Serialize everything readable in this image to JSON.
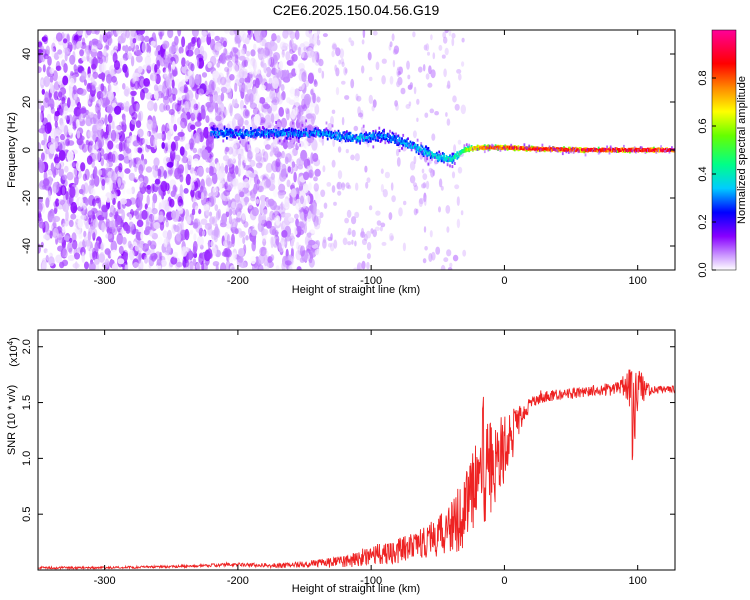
{
  "figure": {
    "title": "C2E6.2025.150.04.56.G19"
  },
  "chart_data": [
    {
      "type": "heatmap",
      "title": "",
      "xlabel": "Height of straight line (km)",
      "ylabel": "Frequency (Hz)",
      "xlim": [
        -350,
        128
      ],
      "ylim": [
        -50,
        50
      ],
      "xticks": [
        -300,
        -200,
        -100,
        0,
        100
      ],
      "yticks": [
        -40,
        -20,
        0,
        20,
        40
      ],
      "grid": false,
      "colorbar": {
        "label": "Normalized spectral amplitude",
        "range": [
          0,
          1
        ],
        "ticks": [
          0.0,
          0.2,
          0.4,
          0.6,
          0.8
        ],
        "tick_labels": [
          "0.0",
          "0.2",
          "0.4",
          "0.6",
          "0.8"
        ],
        "colormap": [
          "#ffffff",
          "#9933ff",
          "#0000ff",
          "#00ffff",
          "#00ff00",
          "#ffff00",
          "#ff8800",
          "#ff0000",
          "#ff00aa"
        ]
      },
      "noise_region": {
        "x_range": [
          -350,
          -140
        ],
        "y_range": [
          -50,
          50
        ],
        "amplitude_range": [
          0.0,
          0.15
        ]
      },
      "signal_track": [
        {
          "x": -220,
          "center": 7,
          "width": 6,
          "amplitude": 0.3
        },
        {
          "x": -180,
          "center": 7,
          "width": 5,
          "amplitude": 0.3
        },
        {
          "x": -140,
          "center": 7,
          "width": 5,
          "amplitude": 0.3
        },
        {
          "x": -110,
          "center": 5,
          "width": 5,
          "amplitude": 0.33
        },
        {
          "x": -90,
          "center": 6,
          "width": 6,
          "amplitude": 0.3
        },
        {
          "x": -70,
          "center": 2,
          "width": 5,
          "amplitude": 0.33
        },
        {
          "x": -50,
          "center": -3,
          "width": 5,
          "amplitude": 0.36
        },
        {
          "x": -40,
          "center": -4,
          "width": 4,
          "amplitude": 0.38
        },
        {
          "x": -30,
          "center": 0,
          "width": 3,
          "amplitude": 0.5
        },
        {
          "x": -20,
          "center": 1,
          "width": 2,
          "amplitude": 0.8
        },
        {
          "x": 0,
          "center": 1,
          "width": 2,
          "amplitude": 0.85
        },
        {
          "x": 20,
          "center": 0.5,
          "width": 2,
          "amplitude": 0.88
        },
        {
          "x": 60,
          "center": 0,
          "width": 2,
          "amplitude": 0.9
        },
        {
          "x": 100,
          "center": 0,
          "width": 2,
          "amplitude": 0.9
        },
        {
          "x": 128,
          "center": 0,
          "width": 2,
          "amplitude": 0.9
        }
      ]
    },
    {
      "type": "line",
      "title": "",
      "xlabel": "Height of straight line (km)",
      "ylabel": "SNR (10 * v/v)",
      "y_scale_label": "(x10",
      "y_scale_exponent": "4",
      "y_scale_suffix": ")",
      "xlim": [
        -350,
        128
      ],
      "ylim": [
        0,
        2.15
      ],
      "xticks": [
        -300,
        -200,
        -100,
        0,
        100
      ],
      "yticks": [
        0.5,
        1.0,
        1.5,
        2.0
      ],
      "grid": false,
      "series": [
        {
          "color": "#ee2222",
          "x": [
            -350,
            -300,
            -250,
            -200,
            -175,
            -150,
            -125,
            -110,
            -100,
            -90,
            -80,
            -70,
            -60,
            -50,
            -40,
            -35,
            -30,
            -25,
            -20,
            -15,
            -10,
            -5,
            0,
            5,
            10,
            15,
            20,
            25,
            30,
            40,
            50,
            60,
            70,
            80,
            90,
            95,
            100,
            110,
            120,
            128
          ],
          "values": [
            0.02,
            0.02,
            0.03,
            0.05,
            0.04,
            0.05,
            0.07,
            0.1,
            0.14,
            0.15,
            0.17,
            0.22,
            0.26,
            0.3,
            0.38,
            0.45,
            0.55,
            0.65,
            0.75,
            0.85,
            0.92,
            1.0,
            1.1,
            1.2,
            1.32,
            1.42,
            1.5,
            1.53,
            1.55,
            1.57,
            1.58,
            1.6,
            1.61,
            1.62,
            1.63,
            1.64,
            1.62,
            1.61,
            1.62,
            1.62
          ],
          "noise": [
            0.01,
            0.01,
            0.01,
            0.015,
            0.02,
            0.03,
            0.05,
            0.07,
            0.09,
            0.1,
            0.11,
            0.12,
            0.15,
            0.18,
            0.22,
            0.3,
            0.35,
            0.4,
            0.42,
            0.45,
            0.42,
            0.38,
            0.32,
            0.25,
            0.15,
            0.08,
            0.06,
            0.05,
            0.05,
            0.05,
            0.05,
            0.05,
            0.05,
            0.06,
            0.08,
            0.25,
            0.2,
            0.04,
            0.03,
            0.03
          ]
        }
      ]
    }
  ]
}
